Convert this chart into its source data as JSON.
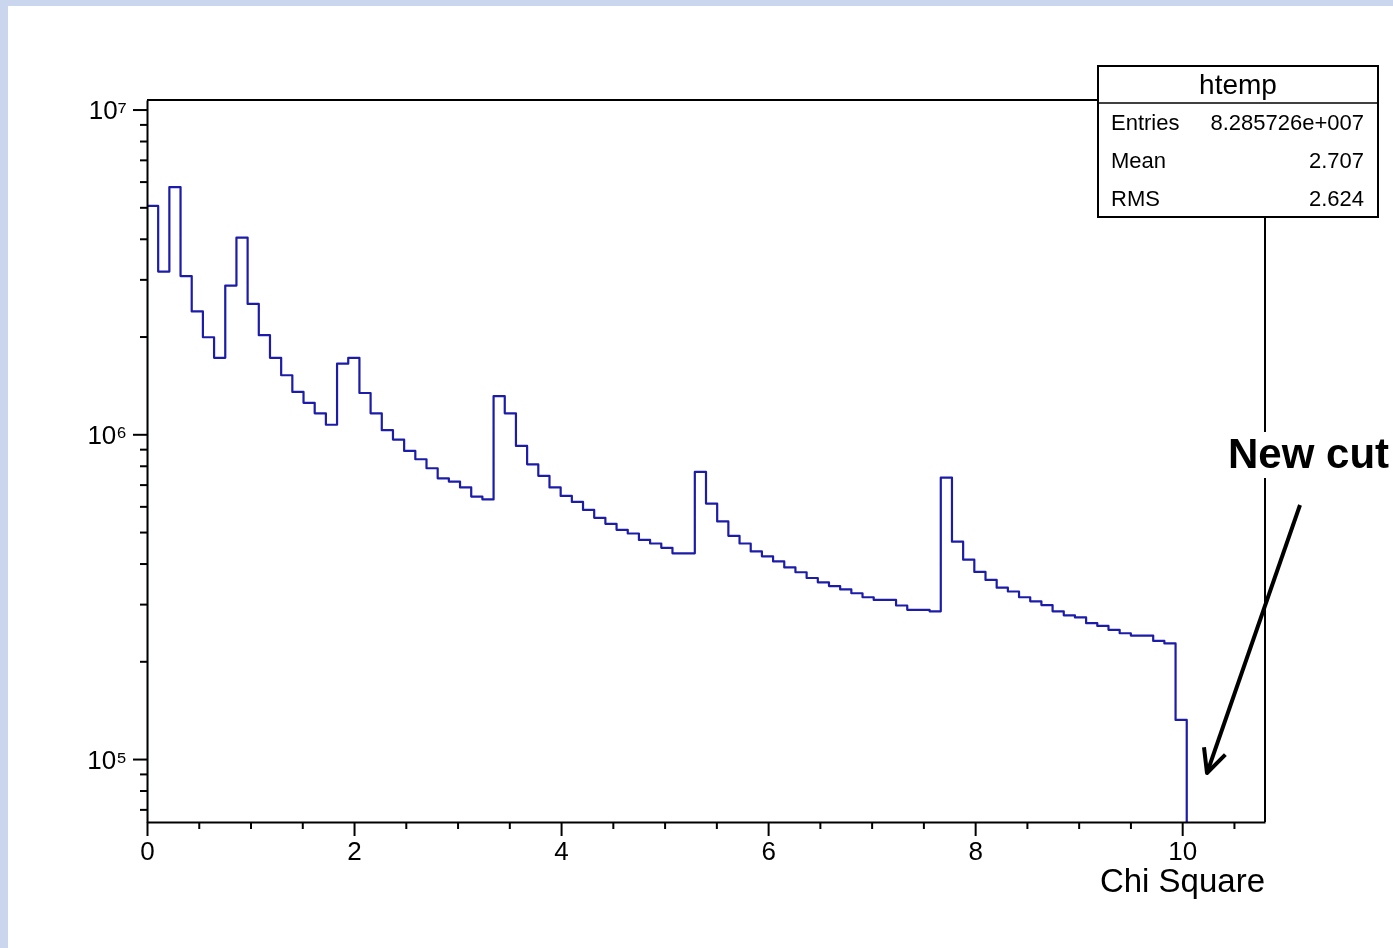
{
  "chart_data": {
    "type": "histogram",
    "title": "htemp",
    "xlabel": "Chi Square",
    "log": true,
    "color": "#1c1ca8",
    "bins": [
      0,
      0.108,
      0.216,
      0.324,
      0.432,
      0.54,
      0.648,
      0.756,
      0.864,
      0.972,
      1.08,
      1.188,
      1.296,
      1.404,
      1.512,
      1.62,
      1.728,
      1.836,
      1.944,
      2.052,
      2.16,
      2.268,
      2.376,
      2.484,
      2.592,
      2.7,
      2.808,
      2.916,
      3.024,
      3.132,
      3.24,
      3.348,
      3.456,
      3.564,
      3.672,
      3.78,
      3.888,
      3.996,
      4.104,
      4.212,
      4.32,
      4.428,
      4.536,
      4.644,
      4.752,
      4.86,
      4.968,
      5.076,
      5.184,
      5.292,
      5.4,
      5.508,
      5.616,
      5.724,
      5.832,
      5.94,
      6.048,
      6.156,
      6.264,
      6.372,
      6.48,
      6.588,
      6.696,
      6.804,
      6.912,
      7.02,
      7.128,
      7.236,
      7.344,
      7.452,
      7.56,
      7.668,
      7.776,
      7.884,
      7.992,
      8.1,
      8.208,
      8.316,
      8.424,
      8.532,
      8.64,
      8.748,
      8.856,
      8.964,
      9.072,
      9.18,
      9.288,
      9.396,
      9.504,
      9.612,
      9.72,
      9.828,
      9.936,
      10.044
    ],
    "values": [
      5050000,
      3170000,
      5770000,
      3070000,
      2390000,
      1990000,
      1720000,
      2870000,
      4030000,
      2520000,
      2020000,
      1720000,
      1520000,
      1350000,
      1250000,
      1160000,
      1070000,
      1650000,
      1720000,
      1340000,
      1160000,
      1030000,
      963000,
      889000,
      838000,
      786000,
      732000,
      715000,
      686000,
      643000,
      630000,
      1310000,
      1160000,
      921000,
      808000,
      745000,
      686000,
      646000,
      619000,
      585000,
      553000,
      530000,
      508000,
      495000,
      473000,
      461000,
      447000,
      430000,
      430000,
      766000,
      612000,
      539000,
      487000,
      461000,
      436000,
      421000,
      406000,
      389000,
      376000,
      361000,
      350000,
      341000,
      333000,
      324000,
      315000,
      309000,
      309000,
      297000,
      288000,
      288000,
      285000,
      736000,
      467000,
      411000,
      377000,
      356000,
      337000,
      328000,
      315000,
      306000,
      298000,
      285000,
      277000,
      273000,
      262000,
      257000,
      250000,
      244000,
      240000,
      240000,
      231000,
      227000,
      132000
    ],
    "xlim": [
      0,
      10.8
    ],
    "xticks": [
      0,
      {
        "value": 0.5,
        "label": null
      },
      {
        "value": 1,
        "label": null
      },
      {
        "value": 1.5,
        "label": null
      },
      2,
      {
        "value": 2.5,
        "label": null
      },
      {
        "value": 3,
        "label": null
      },
      {
        "value": 3.5,
        "label": null
      },
      4,
      {
        "value": 4.5,
        "label": null
      },
      {
        "value": 5,
        "label": null
      },
      {
        "value": 5.5,
        "label": null
      },
      6,
      {
        "value": 6.5,
        "label": null
      },
      {
        "value": 7,
        "label": null
      },
      {
        "value": 7.5,
        "label": null
      },
      8,
      {
        "value": 8.5,
        "label": null
      },
      {
        "value": 9,
        "label": null
      },
      {
        "value": 9.5,
        "label": null
      },
      10,
      {
        "value": 10.5,
        "label": null
      }
    ],
    "ylim": [
      64000,
      10700000
    ],
    "yticks": [
      {
        "value": 70000,
        "label": null
      },
      {
        "value": 80000,
        "label": null
      },
      {
        "value": 90000,
        "label": null
      },
      {
        "value": 100000,
        "label": "10⁵"
      },
      {
        "value": 200000,
        "label": null
      },
      {
        "value": 300000,
        "label": null
      },
      {
        "value": 400000,
        "label": null
      },
      {
        "value": 500000,
        "label": null
      },
      {
        "value": 600000,
        "label": null
      },
      {
        "value": 700000,
        "label": null
      },
      {
        "value": 800000,
        "label": null
      },
      {
        "value": 900000,
        "label": null
      },
      {
        "value": 1000000,
        "label": "10⁶"
      },
      {
        "value": 2000000,
        "label": null
      },
      {
        "value": 3000000,
        "label": null
      },
      {
        "value": 4000000,
        "label": null
      },
      {
        "value": 5000000,
        "label": null
      },
      {
        "value": 6000000,
        "label": null
      },
      {
        "value": 7000000,
        "label": null
      },
      {
        "value": 8000000,
        "label": null
      },
      {
        "value": 9000000,
        "label": null
      },
      {
        "value": 10000000,
        "label": "10⁷"
      }
    ],
    "annotations": [
      "Entries 8.285726e+007",
      "Mean 2.707",
      "RMS 2.624",
      "New cut"
    ]
  }
}
